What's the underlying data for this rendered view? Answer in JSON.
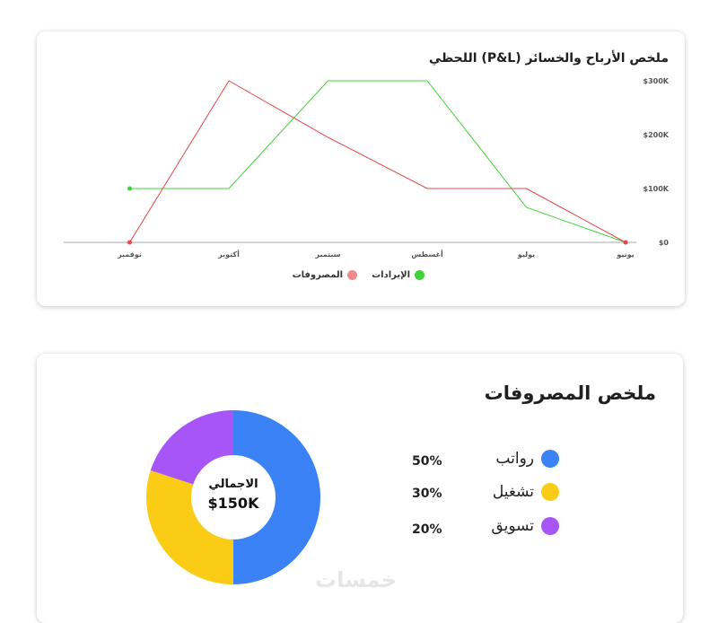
{
  "pl_chart": {
    "title": "ملخص الأرباح والخسائر (P&L) اللحظي",
    "chart_data": {
      "type": "line",
      "categories": [
        "يونيو",
        "يوليو",
        "أغسطس",
        "سبتمبر",
        "أكتوبر",
        "نوفمبر"
      ],
      "series": [
        {
          "name": "الإيرادات",
          "color": "#41d13a",
          "values": [
            0,
            65,
            300,
            300,
            100,
            100
          ]
        },
        {
          "name": "المصروفات",
          "color": "#e0474c",
          "values": [
            0,
            100,
            100,
            195,
            300,
            0
          ]
        }
      ],
      "y_ticks": [
        "$0",
        "$100K",
        "$200K",
        "$300K"
      ],
      "ylim": [
        0,
        300
      ],
      "y_unit": "K",
      "legend_position": "bottom-center",
      "grid": false
    }
  },
  "expenses": {
    "title": "ملخص المصروفات",
    "items": [
      {
        "label": "رواتب",
        "percent": "50%",
        "value": 50,
        "color": "#3b82f6"
      },
      {
        "label": "تشغيل",
        "percent": "30%",
        "value": 30,
        "color": "#facc15"
      },
      {
        "label": "تسويق",
        "percent": "20%",
        "value": 20,
        "color": "#a855f7"
      }
    ],
    "total_label": "الاجمالي",
    "total_value": "$150K"
  },
  "watermark": "خمسات"
}
